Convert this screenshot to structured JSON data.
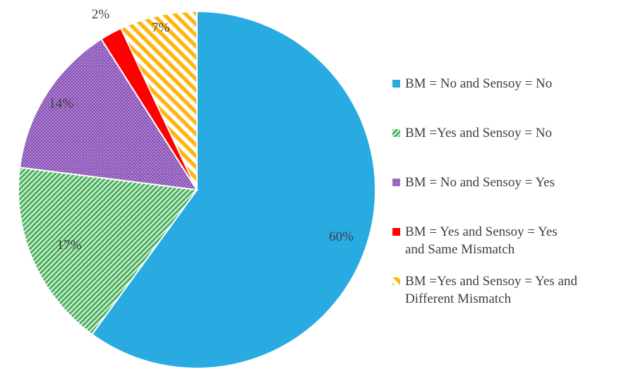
{
  "chart_data": {
    "type": "pie",
    "title": "",
    "direction": "clockwise",
    "start_angle_deg": 0,
    "legend_position": "right",
    "background": "#ffffff",
    "label_color": "#3f3f3f",
    "slices": [
      {
        "id": "bm-no-sensoy-no",
        "label": "BM = No and Sensoy = No",
        "value": 60,
        "pct_label": "60%",
        "color": "#29ABE2",
        "pattern": "solid",
        "label_r": 0.85
      },
      {
        "id": "bm-yes-sensoy-no",
        "label": "BM =Yes and Sensoy = No",
        "value": 17,
        "pct_label": "17%",
        "color": "#4CB25F",
        "pattern": "diagonal-hatch",
        "label_r": 0.78
      },
      {
        "id": "bm-no-sensoy-yes",
        "label": "BM = No and Sensoy = Yes",
        "value": 14,
        "pct_label": "14%",
        "color": "#8A52B8",
        "pattern": "dots",
        "label_r": 0.9
      },
      {
        "id": "bm-yes-sensoy-yes-same-mismatch",
        "label": "BM = Yes and Sensoy = Yes and Same Mismatch",
        "value": 2,
        "pct_label": "2%",
        "color": "#FF0000",
        "pattern": "solid",
        "label_r": 1.12
      },
      {
        "id": "bm-yes-sensoy-yes-different-mismatch",
        "label": "BM =Yes and Sensoy = Yes and Different Mismatch",
        "value": 7,
        "pct_label": "7%",
        "color": "#FFB612",
        "pattern": "wide-stripe",
        "label_r": 0.93
      }
    ]
  },
  "legend": {
    "items": [
      {
        "lines": [
          "BM = No and Sensoy = No"
        ]
      },
      {
        "lines": [
          "BM =Yes and Sensoy = No"
        ]
      },
      {
        "lines": [
          "BM = No and Sensoy = Yes"
        ]
      },
      {
        "lines": [
          "BM = Yes and Sensoy = Yes",
          "and Same Mismatch"
        ]
      },
      {
        "lines": [
          "BM =Yes and Sensoy = Yes and",
          "Different Mismatch"
        ]
      }
    ]
  }
}
